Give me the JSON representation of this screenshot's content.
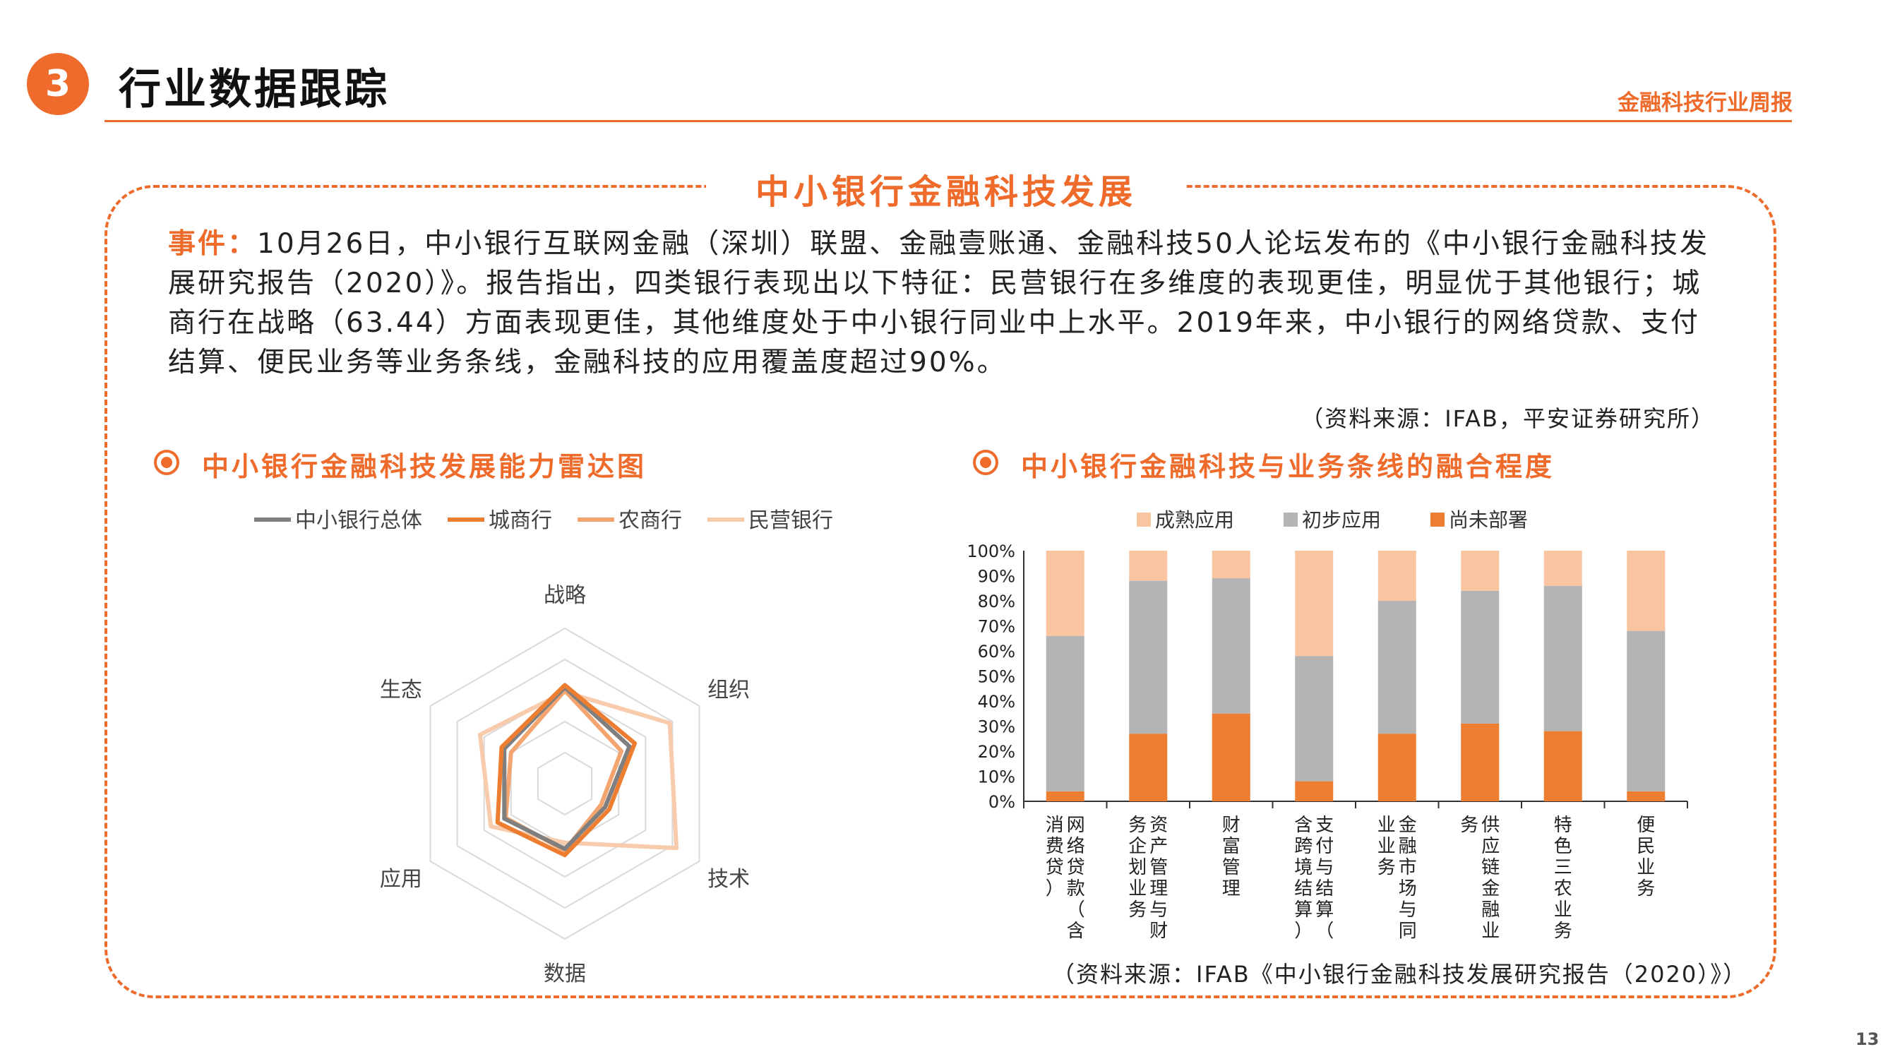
{
  "section": {
    "number": "3",
    "title": "行业数据跟踪"
  },
  "header": {
    "report_name": "金融科技行业周报"
  },
  "panel": {
    "title": "中小银行金融科技发展",
    "event_label": "事件：",
    "event_text": "10月26日，中小银行互联网金融（深圳）联盟、金融壹账通、金融科技50人论坛发布的《中小银行金融科技发展研究报告（2020）》。报告指出，四类银行表现出以下特征：民营银行在多维度的表现更佳，明显优于其他银行；城商行在战略（63.44）方面表现更佳，其他维度处于中小银行同业中上水平。2019年来，中小银行的网络贷款、支付结算、便民业务等业务条线，金融科技的应用覆盖度超过90%。",
    "source_top": "（资料来源：IFAB，平安证券研究所）",
    "left_title": "中小银行金融科技发展能力雷达图",
    "right_title": "中小银行金融科技与业务条线的融合程度",
    "source_bottom": "（资料来源：IFAB《中小银行金融科技发展研究报告（2020）》）"
  },
  "page_number": "13",
  "colors": {
    "accent": "#ee6b2b"
  },
  "icons": {
    "subtitle_bullet": "target-circle-icon"
  },
  "chart_data": [
    {
      "type": "radar",
      "axes": [
        "战略",
        "组织",
        "技术",
        "数据",
        "应用",
        "生态"
      ],
      "rmax": 100,
      "series": [
        {
          "name": "中小银行总体",
          "color": "#7f7f7f",
          "values": [
            62,
            48,
            30,
            42,
            45,
            45
          ]
        },
        {
          "name": "城商行",
          "color": "#ed7d31",
          "values": [
            63.44,
            52,
            33,
            46,
            50,
            47
          ]
        },
        {
          "name": "农商行",
          "color": "#f4a46e",
          "values": [
            60,
            42,
            27,
            43,
            44,
            40
          ]
        },
        {
          "name": "民营银行",
          "color": "#f8cbad",
          "values": [
            59,
            78,
            83,
            38,
            55,
            63
          ]
        }
      ]
    },
    {
      "type": "bar",
      "stacked": true,
      "categories": [
        "网络贷款（含消费贷）",
        "资产管理与财务企划业务",
        "财富管理",
        "支付与结算（含跨境结算）",
        "金融市场与同业业务",
        "供应链金融业务",
        "特色三农业务",
        "便民业务"
      ],
      "series": [
        {
          "name": "尚未部署",
          "color": "#ed7d31",
          "values": [
            4,
            27,
            35,
            8,
            27,
            31,
            28,
            4
          ]
        },
        {
          "name": "初步应用",
          "color": "#b4b4b4",
          "values": [
            62,
            61,
            54,
            50,
            53,
            53,
            58,
            64
          ]
        },
        {
          "name": "成熟应用",
          "color": "#f8c5a0",
          "values": [
            34,
            12,
            11,
            42,
            20,
            16,
            14,
            32
          ]
        }
      ],
      "legend_order": [
        "成熟应用",
        "初步应用",
        "尚未部署"
      ],
      "yticks": [
        "0%",
        "10%",
        "20%",
        "30%",
        "40%",
        "50%",
        "60%",
        "70%",
        "80%",
        "90%",
        "100%"
      ],
      "ylim": [
        0,
        100
      ]
    }
  ]
}
